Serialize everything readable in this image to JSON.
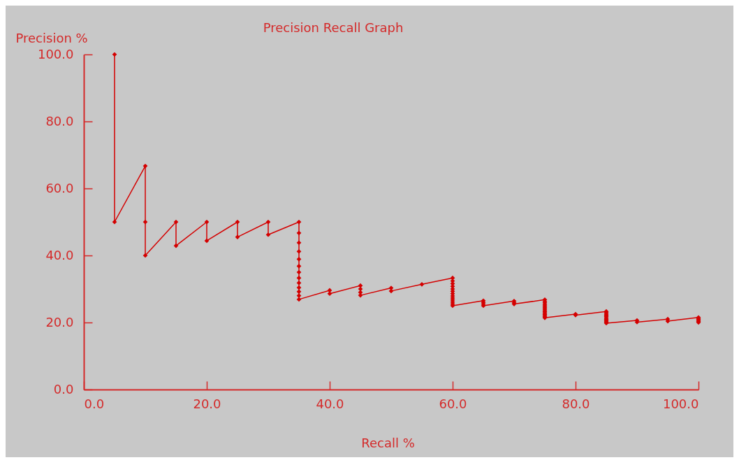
{
  "chart_data": {
    "type": "line",
    "title": "Precision Recall Graph",
    "xlabel": "Recall %",
    "ylabel": "Precision %",
    "xlim": [
      0,
      100
    ],
    "ylim": [
      0,
      100
    ],
    "xticks": [
      {
        "value": 0,
        "label": "0.0"
      },
      {
        "value": 20,
        "label": "20.0"
      },
      {
        "value": 40,
        "label": "40.0"
      },
      {
        "value": 60,
        "label": "60.0"
      },
      {
        "value": 80,
        "label": "80.0"
      },
      {
        "value": 100,
        "label": "100.0"
      }
    ],
    "yticks": [
      {
        "value": 0,
        "label": "0.0"
      },
      {
        "value": 20,
        "label": "20.0"
      },
      {
        "value": 40,
        "label": "40.0"
      },
      {
        "value": 60,
        "label": "60.0"
      },
      {
        "value": 80,
        "label": "80.0"
      },
      {
        "value": 100,
        "label": "100.0"
      }
    ],
    "marker": "diamond",
    "line_style": "solid",
    "series": [
      {
        "color": "#d40000",
        "x": [
          5,
          5,
          10,
          10,
          10,
          15,
          15,
          20,
          20,
          25,
          25,
          30,
          30,
          35,
          35,
          35,
          35,
          35,
          35,
          35,
          35,
          35,
          35,
          35,
          35,
          35,
          40,
          40,
          45,
          45,
          45,
          45,
          50,
          50,
          55,
          60,
          60,
          60,
          60,
          60,
          60,
          60,
          60,
          60,
          60,
          60,
          60,
          60,
          65,
          65,
          65,
          65,
          70,
          70,
          70,
          75,
          75,
          75,
          75,
          75,
          75,
          75,
          75,
          75,
          75,
          75,
          75,
          75,
          75,
          75,
          80,
          80,
          85,
          85,
          85,
          85,
          85,
          85,
          85,
          85,
          85,
          85,
          85,
          85,
          90,
          90,
          95,
          95,
          100,
          100,
          100,
          100,
          100,
          100
        ],
        "values": [
          100,
          50,
          66.7,
          50,
          40,
          50,
          42.9,
          50,
          44.4,
          50,
          45.5,
          50,
          46.2,
          50,
          46.7,
          43.8,
          41.2,
          38.9,
          36.8,
          35.0,
          33.3,
          31.8,
          30.4,
          29.2,
          28.0,
          26.9,
          29.6,
          28.6,
          31.0,
          30.0,
          29.0,
          28.1,
          30.3,
          29.4,
          31.4,
          33.3,
          32.4,
          31.6,
          30.8,
          30.0,
          29.3,
          28.6,
          27.9,
          27.3,
          26.7,
          26.1,
          25.5,
          25.0,
          26.5,
          26.0,
          25.5,
          25.0,
          26.4,
          25.9,
          25.5,
          26.8,
          26.3,
          25.9,
          25.4,
          25.0,
          24.6,
          24.2,
          23.8,
          23.4,
          23.1,
          22.7,
          22.4,
          22.1,
          21.7,
          21.4,
          22.5,
          22.2,
          23.3,
          23.0,
          22.6,
          22.3,
          22.0,
          21.7,
          21.3,
          21.0,
          20.7,
          20.4,
          20.1,
          19.8,
          20.6,
          20.1,
          21.0,
          20.4,
          21.5,
          21.2,
          20.9,
          20.6,
          20.3,
          20.0
        ]
      }
    ]
  }
}
